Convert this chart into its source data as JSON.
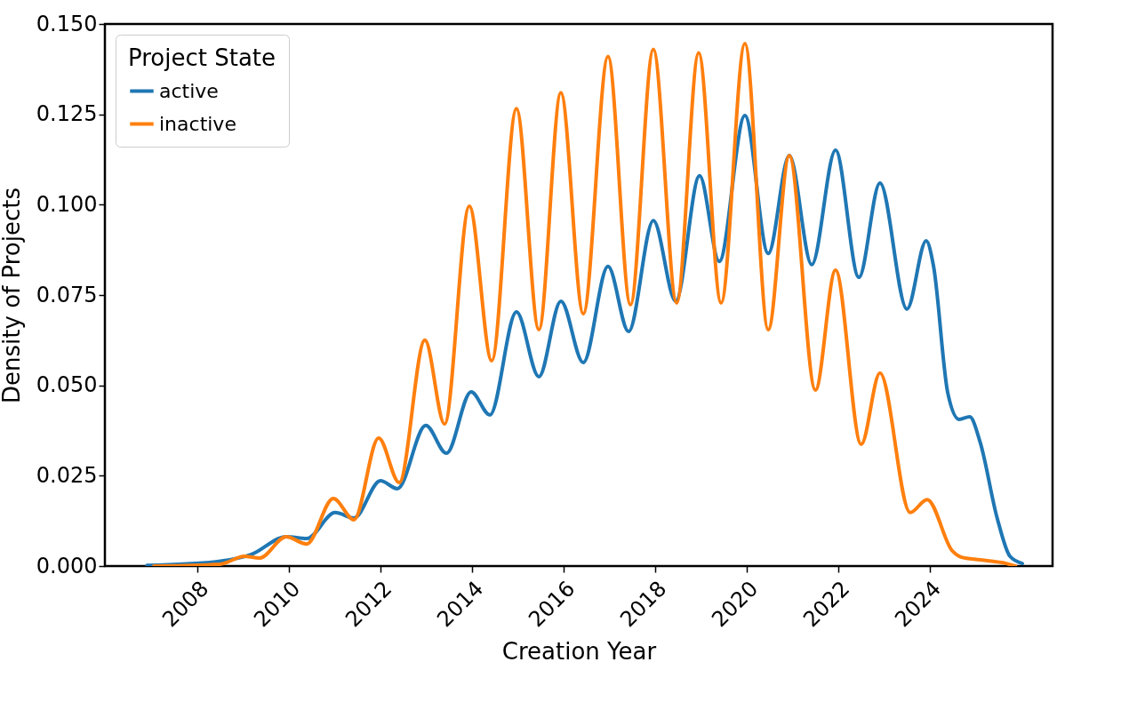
{
  "chart_data": {
    "type": "line",
    "xlabel": "Creation Year",
    "ylabel": "Density of Projects",
    "legend_title": "Project State",
    "xlim": [
      2005.98,
      2026.68
    ],
    "ylim": [
      0,
      0.15
    ],
    "xticks": [
      2008,
      2010,
      2012,
      2014,
      2016,
      2018,
      2020,
      2022,
      2024
    ],
    "yticks": [
      {
        "value": 0,
        "label": "0.000"
      },
      {
        "value": 0.025,
        "label": "0.025"
      },
      {
        "value": 0.05,
        "label": "0.050"
      },
      {
        "value": 0.075,
        "label": "0.075"
      },
      {
        "value": 0.1,
        "label": "0.100"
      },
      {
        "value": 0.125,
        "label": "0.125"
      },
      {
        "value": 0.15,
        "label": "0.150"
      }
    ],
    "grid": false,
    "legend": "top left",
    "marker": "none",
    "line_style": "solid",
    "series": [
      {
        "name": "active",
        "color": "#1f77b4",
        "x": [
          2006.9,
          2008.4,
          2009.18,
          2009.94,
          2010.39,
          2011.01,
          2011.42,
          2012.0,
          2012.37,
          2012.99,
          2013.44,
          2013.98,
          2014.39,
          2014.97,
          2015.46,
          2015.94,
          2016.43,
          2016.97,
          2017.42,
          2017.96,
          2018.45,
          2018.97,
          2019.4,
          2019.96,
          2020.47,
          2020.93,
          2021.42,
          2021.94,
          2022.45,
          2022.91,
          2023.5,
          2023.92,
          2024.08,
          2024.39,
          2024.64,
          2024.87,
          2025.1,
          2025.47,
          2025.75,
          2026.02
        ],
        "values": [
          0.0002,
          0.0012,
          0.0032,
          0.0081,
          0.0076,
          0.0148,
          0.0133,
          0.0236,
          0.0214,
          0.0389,
          0.0312,
          0.0482,
          0.0418,
          0.0703,
          0.0524,
          0.0733,
          0.0563,
          0.0829,
          0.0649,
          0.0956,
          0.0733,
          0.108,
          0.0843,
          0.1247,
          0.0865,
          0.1136,
          0.0834,
          0.1151,
          0.0799,
          0.106,
          0.0711,
          0.09,
          0.083,
          0.048,
          0.0406,
          0.0413,
          0.0342,
          0.0133,
          0.0027,
          0.0007
        ]
      },
      {
        "name": "inactive",
        "color": "#ff7f0e",
        "x": [
          2007.05,
          2008.49,
          2009.03,
          2009.36,
          2009.94,
          2010.39,
          2010.97,
          2011.42,
          2011.96,
          2012.41,
          2012.97,
          2013.4,
          2013.94,
          2014.43,
          2014.97,
          2015.46,
          2015.94,
          2016.43,
          2016.97,
          2017.46,
          2017.96,
          2018.47,
          2018.95,
          2019.44,
          2019.96,
          2020.47,
          2020.93,
          2021.5,
          2021.94,
          2022.5,
          2022.91,
          2023.57,
          2023.94,
          2024.49,
          2024.68,
          2025.1,
          2025.67,
          2025.87
        ],
        "values": [
          0,
          0.0005,
          0.0027,
          0.0022,
          0.0081,
          0.0061,
          0.0187,
          0.0128,
          0.0354,
          0.0231,
          0.0625,
          0.0393,
          0.0996,
          0.0568,
          0.1266,
          0.0654,
          0.131,
          0.0698,
          0.141,
          0.0723,
          0.143,
          0.0728,
          0.142,
          0.0728,
          0.1446,
          0.0654,
          0.1136,
          0.0487,
          0.0819,
          0.0337,
          0.0534,
          0.0148,
          0.0184,
          0.0042,
          0.0025,
          0.0017,
          0.0007,
          0
        ]
      }
    ]
  }
}
